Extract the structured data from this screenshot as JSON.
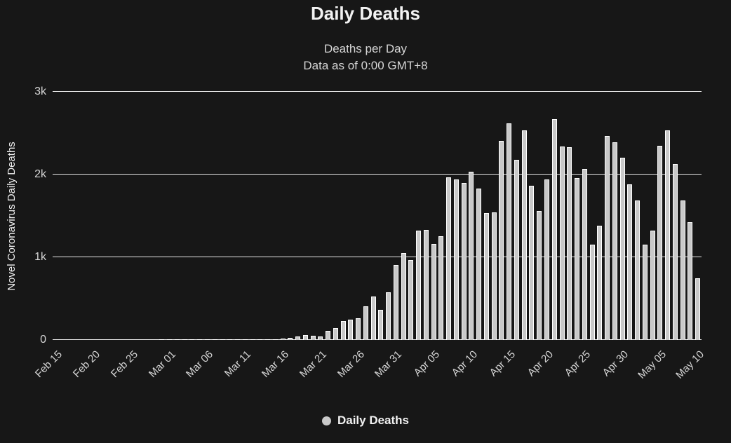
{
  "chart": {
    "title": "Daily Deaths",
    "subtitle_line1": "Deaths per Day",
    "subtitle_line2": "Data as of 0:00 GMT+8",
    "y_axis_title": "Novel Coronavirus Daily Deaths",
    "legend_label": "Daily Deaths",
    "colors": {
      "background": "#171717",
      "bar_fill": "#c9c9c9",
      "bar_border": "#ffffff",
      "grid": "#e8e8e8",
      "text": "#f2f2f2",
      "subtext": "#d6d6d6"
    }
  },
  "chart_data": {
    "type": "bar",
    "title": "Daily Deaths",
    "subtitle": "Deaths per Day — Data as of 0:00 GMT+8",
    "xlabel": "",
    "ylabel": "Novel Coronavirus Daily Deaths",
    "ylim": [
      0,
      3000
    ],
    "grid": true,
    "legend_position": "bottom",
    "legend": [
      {
        "name": "Daily Deaths"
      }
    ],
    "yticks": [
      {
        "value": 0,
        "label": "0"
      },
      {
        "value": 1000,
        "label": "1k"
      },
      {
        "value": 2000,
        "label": "2k"
      },
      {
        "value": 3000,
        "label": "3k"
      }
    ],
    "x_tick_every": 5,
    "x_tick_labels": [
      "Feb 15",
      "Feb 20",
      "Feb 25",
      "Mar 01",
      "Mar 06",
      "Mar 11",
      "Mar 16",
      "Mar 21",
      "Mar 26",
      "Mar 31",
      "Apr 05",
      "Apr 10",
      "Apr 15",
      "Apr 20",
      "Apr 25",
      "Apr 30",
      "May 05",
      "May 10"
    ],
    "categories": [
      "Feb 15",
      "Feb 16",
      "Feb 17",
      "Feb 18",
      "Feb 19",
      "Feb 20",
      "Feb 21",
      "Feb 22",
      "Feb 23",
      "Feb 24",
      "Feb 25",
      "Feb 26",
      "Feb 27",
      "Feb 28",
      "Feb 29",
      "Mar 01",
      "Mar 02",
      "Mar 03",
      "Mar 04",
      "Mar 05",
      "Mar 06",
      "Mar 07",
      "Mar 08",
      "Mar 09",
      "Mar 10",
      "Mar 11",
      "Mar 12",
      "Mar 13",
      "Mar 14",
      "Mar 15",
      "Mar 16",
      "Mar 17",
      "Mar 18",
      "Mar 19",
      "Mar 20",
      "Mar 21",
      "Mar 22",
      "Mar 23",
      "Mar 24",
      "Mar 25",
      "Mar 26",
      "Mar 27",
      "Mar 28",
      "Mar 29",
      "Mar 30",
      "Mar 31",
      "Apr 01",
      "Apr 02",
      "Apr 03",
      "Apr 04",
      "Apr 05",
      "Apr 06",
      "Apr 07",
      "Apr 08",
      "Apr 09",
      "Apr 10",
      "Apr 11",
      "Apr 12",
      "Apr 13",
      "Apr 14",
      "Apr 15",
      "Apr 16",
      "Apr 17",
      "Apr 18",
      "Apr 19",
      "Apr 20",
      "Apr 21",
      "Apr 22",
      "Apr 23",
      "Apr 24",
      "Apr 25",
      "Apr 26",
      "Apr 27",
      "Apr 28",
      "Apr 29",
      "Apr 30",
      "May 01",
      "May 02",
      "May 03",
      "May 04",
      "May 05",
      "May 06",
      "May 07",
      "May 08",
      "May 09",
      "May 10"
    ],
    "values": [
      0,
      0,
      0,
      0,
      0,
      0,
      0,
      0,
      0,
      0,
      0,
      0,
      0,
      0,
      1,
      1,
      5,
      2,
      2,
      1,
      3,
      2,
      3,
      4,
      2,
      8,
      2,
      10,
      11,
      10,
      17,
      22,
      42,
      56,
      50,
      44,
      113,
      140,
      225,
      246,
      267,
      410,
      523,
      365,
      575,
      910,
      1050,
      970,
      1320,
      1330,
      1165,
      1255,
      1970,
      1940,
      1900,
      2035,
      1830,
      1530,
      1540,
      2405,
      2620,
      2175,
      2535,
      1865,
      1560,
      1940,
      2670,
      2340,
      2330,
      1955,
      2065,
      1155,
      1385,
      2470,
      2390,
      2200,
      1885,
      1690,
      1155,
      1325,
      2350,
      2530,
      2130,
      1685,
      1420,
      750
    ]
  }
}
